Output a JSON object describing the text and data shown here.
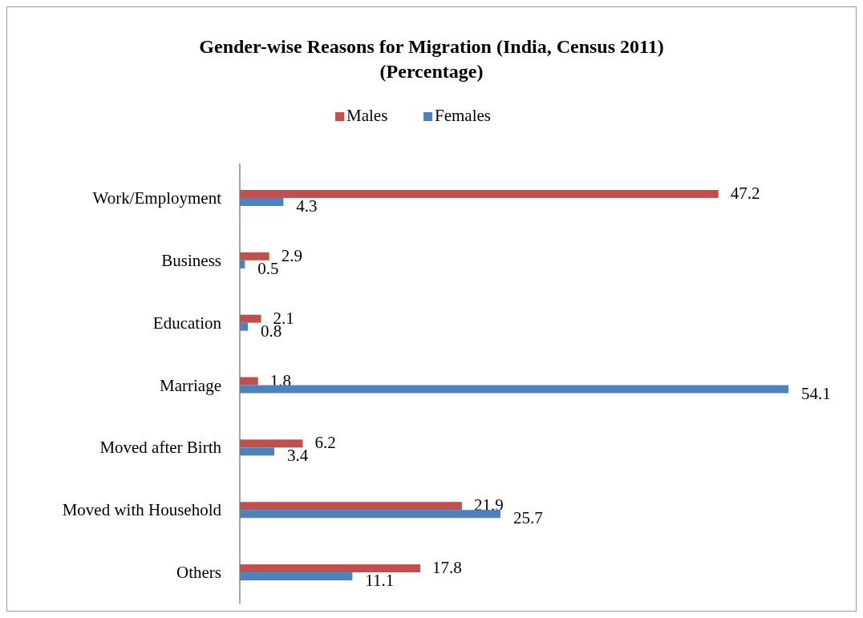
{
  "chart_data": {
    "type": "bar",
    "orientation": "horizontal",
    "title": "Gender-wise Reasons for Migration (India, Census 2011)\n(Percentage)",
    "categories": [
      "Work/Employment",
      "Business",
      "Education",
      "Marriage",
      "Moved after Birth",
      "Moved with Household",
      "Others"
    ],
    "series": [
      {
        "name": "Males",
        "color": "#c0504d",
        "values": [
          47.2,
          2.9,
          2.1,
          1.8,
          6.2,
          21.9,
          17.8
        ]
      },
      {
        "name": "Females",
        "color": "#4f81bd",
        "values": [
          4.3,
          0.5,
          0.8,
          54.1,
          3.4,
          25.7,
          11.1
        ]
      }
    ],
    "data_labels": true,
    "legend": "top",
    "grid": false,
    "tick_labels": "y"
  }
}
